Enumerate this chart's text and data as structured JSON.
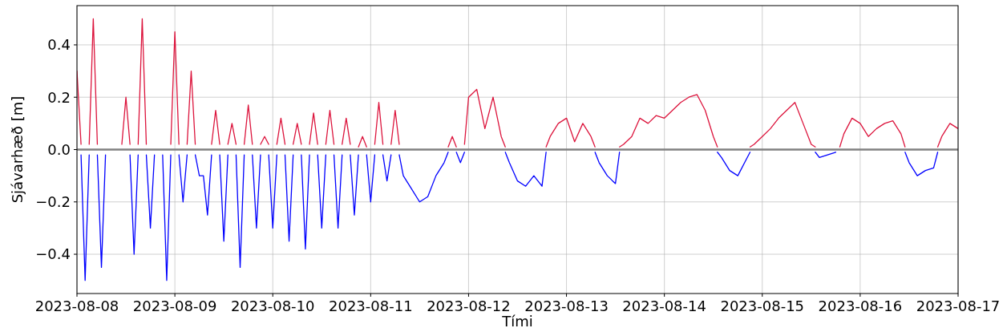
{
  "chart_data": {
    "type": "line",
    "xlabel": "Tími",
    "ylabel": "Sjávarhæð [m]",
    "xlim": [
      "2023-08-08",
      "2023-08-17"
    ],
    "xticks": [
      "2023-08-08",
      "2023-08-09",
      "2023-08-10",
      "2023-08-11",
      "2023-08-12",
      "2023-08-13",
      "2023-08-14",
      "2023-08-15",
      "2023-08-16",
      "2023-08-17"
    ],
    "ylim": [
      -0.55,
      0.55
    ],
    "yticks": [
      {
        "value": -0.4,
        "label": "−0.4"
      },
      {
        "value": -0.2,
        "label": "−0.2"
      },
      {
        "value": 0,
        "label": "0.0"
      },
      0.2,
      0.4
    ],
    "grid": true,
    "ref_lines": [
      {
        "axis": "y",
        "value": 0,
        "color": "#808080"
      }
    ],
    "series": [
      {
        "color": "#dc143c",
        "x": [
          "2023-08-08T00:00",
          "2023-08-08T01:00",
          "2023-08-08T02:00",
          "2023-08-08T03:00",
          "2023-08-08T04:00",
          "2023-08-08T05:00",
          "2023-08-08T06:00",
          "2023-08-08T07:00",
          "2023-08-08T08:00",
          "2023-08-08T09:00",
          "2023-08-08T10:00",
          "2023-08-08T11:00",
          "2023-08-08T12:00",
          "2023-08-08T13:00",
          "2023-08-08T14:00",
          "2023-08-08T15:00",
          "2023-08-08T16:00",
          "2023-08-08T17:00",
          "2023-08-08T18:00",
          "2023-08-08T19:00",
          "2023-08-08T20:00",
          "2023-08-08T21:00",
          "2023-08-08T22:00",
          "2023-08-08T23:00",
          "2023-08-09T00:00",
          "2023-08-09T01:00",
          "2023-08-09T02:00",
          "2023-08-09T03:00",
          "2023-08-09T04:00",
          "2023-08-09T05:00",
          "2023-08-09T06:00",
          "2023-08-09T09:00",
          "2023-08-09T10:00",
          "2023-08-09T11:00",
          "2023-08-09T12:00",
          "2023-08-09T13:00",
          "2023-08-09T14:00",
          "2023-08-09T15:00",
          "2023-08-09T16:00",
          "2023-08-09T17:00",
          "2023-08-09T18:00",
          "2023-08-09T19:00",
          "2023-08-09T20:00",
          "2023-08-09T21:00",
          "2023-08-09T22:00",
          "2023-08-09T23:00",
          "2023-08-10T00:00",
          "2023-08-10T01:00",
          "2023-08-10T02:00",
          "2023-08-10T03:00",
          "2023-08-10T04:00",
          "2023-08-10T05:00",
          "2023-08-10T06:00",
          "2023-08-10T07:00",
          "2023-08-10T08:00",
          "2023-08-10T09:00",
          "2023-08-10T10:00",
          "2023-08-10T11:00",
          "2023-08-10T12:00",
          "2023-08-10T13:00",
          "2023-08-10T14:00",
          "2023-08-10T15:00",
          "2023-08-10T16:00",
          "2023-08-10T17:00",
          "2023-08-10T18:00",
          "2023-08-10T19:00",
          "2023-08-10T20:00",
          "2023-08-10T21:00",
          "2023-08-10T22:00",
          "2023-08-10T23:00",
          "2023-08-11T00:00",
          "2023-08-11T01:00",
          "2023-08-11T02:00",
          "2023-08-11T03:00",
          "2023-08-11T04:00",
          "2023-08-11T05:00",
          "2023-08-11T06:00",
          "2023-08-11T07:00",
          "2023-08-11T08:00",
          "2023-08-11T19:00",
          "2023-08-11T20:00",
          "2023-08-11T21:00",
          "2023-08-11T22:00",
          "2023-08-11T23:00",
          "2023-08-12T00:00",
          "2023-08-12T02:00",
          "2023-08-12T04:00",
          "2023-08-12T06:00",
          "2023-08-12T08:00",
          "2023-08-12T09:00",
          "2023-08-12T10:00",
          "2023-08-12T19:00",
          "2023-08-12T20:00",
          "2023-08-12T22:00",
          "2023-08-13T00:00",
          "2023-08-13T02:00",
          "2023-08-13T04:00",
          "2023-08-13T06:00",
          "2023-08-13T07:00",
          "2023-08-13T08:00",
          "2023-08-13T13:00",
          "2023-08-13T14:00",
          "2023-08-13T16:00",
          "2023-08-13T18:00",
          "2023-08-13T20:00",
          "2023-08-13T22:00",
          "2023-08-14T00:00",
          "2023-08-14T02:00",
          "2023-08-14T04:00",
          "2023-08-14T06:00",
          "2023-08-14T08:00",
          "2023-08-14T10:00",
          "2023-08-14T12:00",
          "2023-08-14T13:00",
          "2023-08-14T14:00",
          "2023-08-14T21:00",
          "2023-08-14T22:00",
          "2023-08-15T00:00",
          "2023-08-15T02:00",
          "2023-08-15T04:00",
          "2023-08-15T06:00",
          "2023-08-15T08:00",
          "2023-08-15T10:00",
          "2023-08-15T12:00",
          "2023-08-15T13:00",
          "2023-08-15T14:00",
          "2023-08-15T19:00",
          "2023-08-15T20:00",
          "2023-08-15T22:00",
          "2023-08-16T00:00",
          "2023-08-16T02:00",
          "2023-08-16T04:00",
          "2023-08-16T06:00",
          "2023-08-16T08:00",
          "2023-08-16T10:00",
          "2023-08-16T11:00",
          "2023-08-16T12:00",
          "2023-08-16T19:00",
          "2023-08-16T20:00",
          "2023-08-16T22:00",
          "2023-08-17T00:00"
        ],
        "values": [
          0.3,
          0.02,
          null,
          0.02,
          0.5,
          0.02,
          null,
          null,
          null,
          null,
          null,
          0.02,
          0.2,
          0.02,
          null,
          0.02,
          0.5,
          0.02,
          null,
          null,
          null,
          null,
          null,
          0.02,
          0.45,
          0.02,
          null,
          0.02,
          0.3,
          0.02,
          null,
          0.02,
          0.15,
          0.02,
          null,
          0.02,
          0.1,
          0.02,
          null,
          0.02,
          0.17,
          0.02,
          null,
          0.02,
          0.05,
          0.02,
          null,
          0.02,
          0.12,
          0.02,
          null,
          0.02,
          0.1,
          0.02,
          null,
          0.02,
          0.14,
          0.02,
          null,
          0.02,
          0.15,
          0.02,
          null,
          0.02,
          0.12,
          0.02,
          null,
          0.01,
          0.05,
          0.01,
          null,
          0.02,
          0.18,
          0.02,
          null,
          0.02,
          0.15,
          0.02,
          null,
          0.01,
          0.05,
          0.01,
          null,
          0.02,
          0.2,
          0.23,
          0.08,
          0.2,
          0.05,
          0.01,
          null,
          0.01,
          0.05,
          0.1,
          0.12,
          0.03,
          0.1,
          0.05,
          0.01,
          null,
          0.01,
          0.02,
          0.05,
          0.12,
          0.1,
          0.13,
          0.12,
          0.15,
          0.18,
          0.2,
          0.21,
          0.15,
          0.05,
          0.01,
          null,
          0.01,
          0.02,
          0.05,
          0.08,
          0.12,
          0.15,
          0.18,
          0.1,
          0.02,
          0.01,
          null,
          0.01,
          0.06,
          0.12,
          0.1,
          0.05,
          0.08,
          0.1,
          0.11,
          0.06,
          0.01,
          null,
          0.01,
          0.05,
          0.1,
          0.08
        ]
      },
      {
        "color": "#0000ff",
        "x": [
          "2023-08-08T01:00",
          "2023-08-08T02:00",
          "2023-08-08T03:00",
          "2023-08-08T04:00",
          "2023-08-08T05:00",
          "2023-08-08T06:00",
          "2023-08-08T07:00",
          "2023-08-08T08:00",
          "2023-08-08T09:00",
          "2023-08-08T10:00",
          "2023-08-08T11:00",
          "2023-08-08T12:00",
          "2023-08-08T13:00",
          "2023-08-08T14:00",
          "2023-08-08T15:00",
          "2023-08-08T16:00",
          "2023-08-08T17:00",
          "2023-08-08T18:00",
          "2023-08-08T19:00",
          "2023-08-08T20:00",
          "2023-08-08T21:00",
          "2023-08-08T22:00",
          "2023-08-08T23:00",
          "2023-08-09T00:00",
          "2023-08-09T01:00",
          "2023-08-09T02:00",
          "2023-08-09T03:00",
          "2023-08-09T04:00",
          "2023-08-09T05:00",
          "2023-08-09T06:00",
          "2023-08-09T07:00",
          "2023-08-09T08:00",
          "2023-08-09T09:00",
          "2023-08-09T10:00",
          "2023-08-09T11:00",
          "2023-08-09T12:00",
          "2023-08-09T13:00",
          "2023-08-09T14:00",
          "2023-08-09T15:00",
          "2023-08-09T16:00",
          "2023-08-09T17:00",
          "2023-08-09T18:00",
          "2023-08-09T19:00",
          "2023-08-09T20:00",
          "2023-08-09T21:00",
          "2023-08-09T22:00",
          "2023-08-09T23:00",
          "2023-08-10T00:00",
          "2023-08-10T01:00",
          "2023-08-10T02:00",
          "2023-08-10T03:00",
          "2023-08-10T04:00",
          "2023-08-10T05:00",
          "2023-08-10T06:00",
          "2023-08-10T07:00",
          "2023-08-10T08:00",
          "2023-08-10T09:00",
          "2023-08-10T10:00",
          "2023-08-10T11:00",
          "2023-08-10T12:00",
          "2023-08-10T13:00",
          "2023-08-10T14:00",
          "2023-08-10T15:00",
          "2023-08-10T16:00",
          "2023-08-10T17:00",
          "2023-08-10T18:00",
          "2023-08-10T19:00",
          "2023-08-10T20:00",
          "2023-08-10T21:00",
          "2023-08-10T22:00",
          "2023-08-10T23:00",
          "2023-08-11T00:00",
          "2023-08-11T01:00",
          "2023-08-11T02:00",
          "2023-08-11T03:00",
          "2023-08-11T04:00",
          "2023-08-11T05:00",
          "2023-08-11T06:00",
          "2023-08-11T07:00",
          "2023-08-11T08:00",
          "2023-08-11T10:00",
          "2023-08-11T12:00",
          "2023-08-11T14:00",
          "2023-08-11T16:00",
          "2023-08-11T18:00",
          "2023-08-11T19:00",
          "2023-08-11T20:00",
          "2023-08-11T21:00",
          "2023-08-11T22:00",
          "2023-08-11T23:00",
          "2023-08-12T00:00",
          "2023-08-12T09:00",
          "2023-08-12T10:00",
          "2023-08-12T12:00",
          "2023-08-12T14:00",
          "2023-08-12T16:00",
          "2023-08-12T18:00",
          "2023-08-12T19:00",
          "2023-08-13T00:00",
          "2023-08-13T07:00",
          "2023-08-13T08:00",
          "2023-08-13T10:00",
          "2023-08-13T12:00",
          "2023-08-13T13:00",
          "2023-08-13T14:00",
          "2023-08-14T13:00",
          "2023-08-14T14:00",
          "2023-08-14T16:00",
          "2023-08-14T18:00",
          "2023-08-14T20:00",
          "2023-08-14T21:00",
          "2023-08-14T22:00",
          "2023-08-15T13:00",
          "2023-08-15T14:00",
          "2023-08-15T16:00",
          "2023-08-15T18:00",
          "2023-08-15T19:00",
          "2023-08-16T11:00",
          "2023-08-16T12:00",
          "2023-08-16T14:00",
          "2023-08-16T16:00",
          "2023-08-16T18:00",
          "2023-08-16T19:00"
        ],
        "values": [
          -0.02,
          -0.5,
          -0.02,
          null,
          -0.02,
          -0.45,
          -0.02,
          null,
          null,
          null,
          null,
          null,
          -0.02,
          -0.4,
          -0.02,
          null,
          -0.02,
          -0.3,
          -0.02,
          null,
          -0.02,
          -0.5,
          -0.02,
          null,
          -0.02,
          -0.2,
          -0.02,
          null,
          -0.02,
          -0.1,
          -0.1,
          -0.25,
          -0.02,
          null,
          -0.02,
          -0.35,
          -0.02,
          null,
          -0.02,
          -0.45,
          -0.02,
          null,
          -0.02,
          -0.3,
          -0.02,
          null,
          -0.02,
          -0.3,
          -0.02,
          null,
          -0.02,
          -0.35,
          -0.02,
          null,
          -0.02,
          -0.38,
          -0.02,
          null,
          -0.02,
          -0.3,
          -0.02,
          null,
          -0.02,
          -0.3,
          -0.02,
          null,
          -0.02,
          -0.25,
          -0.02,
          null,
          -0.02,
          -0.2,
          -0.02,
          null,
          -0.02,
          -0.12,
          -0.02,
          null,
          -0.02,
          -0.1,
          -0.15,
          -0.2,
          -0.18,
          -0.1,
          -0.05,
          -0.01,
          null,
          -0.01,
          -0.05,
          -0.01,
          null,
          -0.01,
          -0.05,
          -0.12,
          -0.14,
          -0.1,
          -0.14,
          -0.01,
          null,
          -0.01,
          -0.05,
          -0.1,
          -0.13,
          -0.01,
          null,
          -0.01,
          -0.03,
          -0.08,
          -0.1,
          -0.04,
          -0.01,
          null,
          -0.01,
          -0.03,
          -0.02,
          -0.01,
          null,
          -0.01,
          -0.05,
          -0.1,
          -0.08,
          -0.07,
          -0.01
        ]
      }
    ]
  }
}
